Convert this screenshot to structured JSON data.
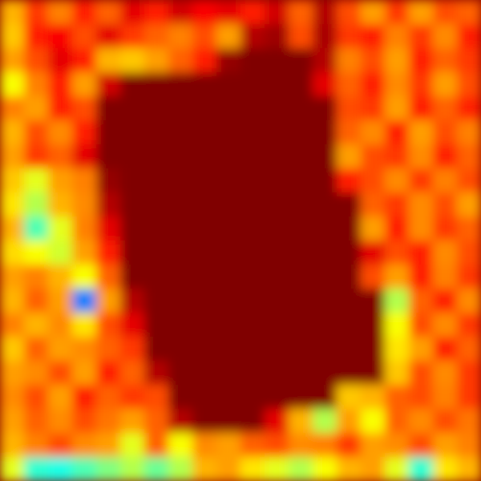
{
  "chart_data": {
    "type": "heatmap",
    "tick_labels": false,
    "zlim": [
      0,
      1
    ],
    "cells": [
      [
        0.7,
        0.82,
        0.75,
        0.85,
        0.78,
        0.9,
        0.85,
        0.92,
        0.88,
        0.9,
        0.85,
        0.92,
        0.78,
        0.95,
        0.8,
        0.72,
        0.82,
        0.72,
        0.8,
        0.78
      ],
      [
        0.68,
        0.85,
        0.88,
        0.8,
        0.9,
        0.82,
        0.78,
        0.75,
        0.8,
        0.72,
        0.95,
        0.97,
        0.8,
        0.96,
        0.82,
        0.85,
        0.75,
        0.82,
        0.74,
        0.85
      ],
      [
        0.72,
        0.8,
        0.9,
        0.85,
        0.7,
        0.68,
        0.72,
        0.78,
        0.85,
        0.98,
        1,
        1,
        1,
        0.95,
        0.75,
        0.8,
        0.72,
        0.85,
        0.78,
        0.82
      ],
      [
        0.62,
        0.75,
        0.85,
        0.72,
        0.92,
        1,
        1,
        1,
        1,
        1,
        1,
        1,
        1,
        0.9,
        0.78,
        0.85,
        0.74,
        0.82,
        0.72,
        0.8
      ],
      [
        0.75,
        0.72,
        0.85,
        0.8,
        1,
        1,
        1,
        1,
        1,
        1,
        1,
        1,
        1,
        1,
        0.8,
        0.82,
        0.72,
        0.85,
        0.78,
        0.84
      ],
      [
        0.7,
        0.8,
        0.74,
        0.85,
        1,
        1,
        1,
        1,
        1,
        1,
        1,
        1,
        1,
        1,
        0.78,
        0.74,
        0.85,
        0.72,
        0.8,
        0.75
      ],
      [
        0.72,
        0.82,
        0.78,
        0.9,
        1,
        1,
        1,
        1,
        1,
        1,
        1,
        1,
        1,
        1,
        0.72,
        0.8,
        0.82,
        0.74,
        0.85,
        0.78
      ],
      [
        0.68,
        0.6,
        0.72,
        0.75,
        0.98,
        1,
        1,
        1,
        1,
        1,
        1,
        1,
        1,
        1,
        0.85,
        0.8,
        0.74,
        0.82,
        0.75,
        0.8
      ],
      [
        0.65,
        0.55,
        0.7,
        0.74,
        0.95,
        1,
        1,
        1,
        1,
        1,
        1,
        1,
        1,
        1,
        1,
        0.78,
        0.82,
        0.74,
        0.8,
        0.72
      ],
      [
        0.7,
        0.45,
        0.6,
        0.75,
        0.9,
        1,
        1,
        1,
        1,
        1,
        1,
        1,
        1,
        1,
        1,
        0.72,
        0.85,
        0.74,
        0.82,
        0.78
      ],
      [
        0.66,
        0.62,
        0.58,
        0.72,
        0.85,
        1,
        1,
        1,
        1,
        1,
        1,
        1,
        1,
        1,
        1,
        0.9,
        0.8,
        0.85,
        0.74,
        0.8
      ],
      [
        0.72,
        0.75,
        0.7,
        0.62,
        0.78,
        1,
        1,
        1,
        1,
        1,
        1,
        1,
        1,
        1,
        1,
        0.8,
        0.72,
        0.85,
        0.75,
        0.82
      ],
      [
        0.7,
        0.78,
        0.72,
        0.25,
        0.72,
        0.95,
        1,
        1,
        1,
        1,
        1,
        1,
        1,
        1,
        1,
        1,
        0.55,
        0.78,
        0.85,
        0.74
      ],
      [
        0.75,
        0.7,
        0.74,
        0.65,
        0.8,
        0.9,
        1,
        1,
        1,
        1,
        1,
        1,
        1,
        1,
        1,
        1,
        0.62,
        0.8,
        0.74,
        0.82
      ],
      [
        0.68,
        0.78,
        0.72,
        0.74,
        0.78,
        0.82,
        1,
        1,
        1,
        1,
        1,
        1,
        1,
        1,
        1,
        1,
        0.65,
        0.72,
        0.85,
        0.78
      ],
      [
        0.72,
        0.74,
        0.8,
        0.72,
        0.85,
        0.78,
        0.95,
        1,
        1,
        1,
        1,
        1,
        1,
        1,
        1,
        1,
        0.68,
        0.8,
        0.74,
        0.82
      ],
      [
        0.74,
        0.8,
        0.72,
        0.85,
        0.78,
        0.82,
        0.8,
        1,
        1,
        1,
        1,
        1,
        1,
        1,
        0.68,
        0.7,
        0.78,
        0.8,
        0.75,
        0.82
      ],
      [
        0.72,
        0.78,
        0.74,
        0.8,
        0.76,
        0.72,
        0.78,
        0.95,
        1,
        1,
        1,
        0.9,
        0.7,
        0.55,
        0.72,
        0.62,
        0.78,
        0.74,
        0.8,
        0.76
      ],
      [
        0.7,
        0.75,
        0.8,
        0.74,
        0.72,
        0.6,
        0.78,
        0.62,
        0.74,
        0.72,
        0.78,
        0.8,
        0.74,
        0.75,
        0.82,
        0.72,
        0.74,
        0.8,
        0.72,
        0.75
      ],
      [
        0.6,
        0.42,
        0.4,
        0.45,
        0.5,
        0.55,
        0.48,
        0.55,
        0.7,
        0.72,
        0.65,
        0.6,
        0.55,
        0.62,
        0.7,
        0.72,
        0.6,
        0.42,
        0.65,
        0.7
      ]
    ]
  }
}
